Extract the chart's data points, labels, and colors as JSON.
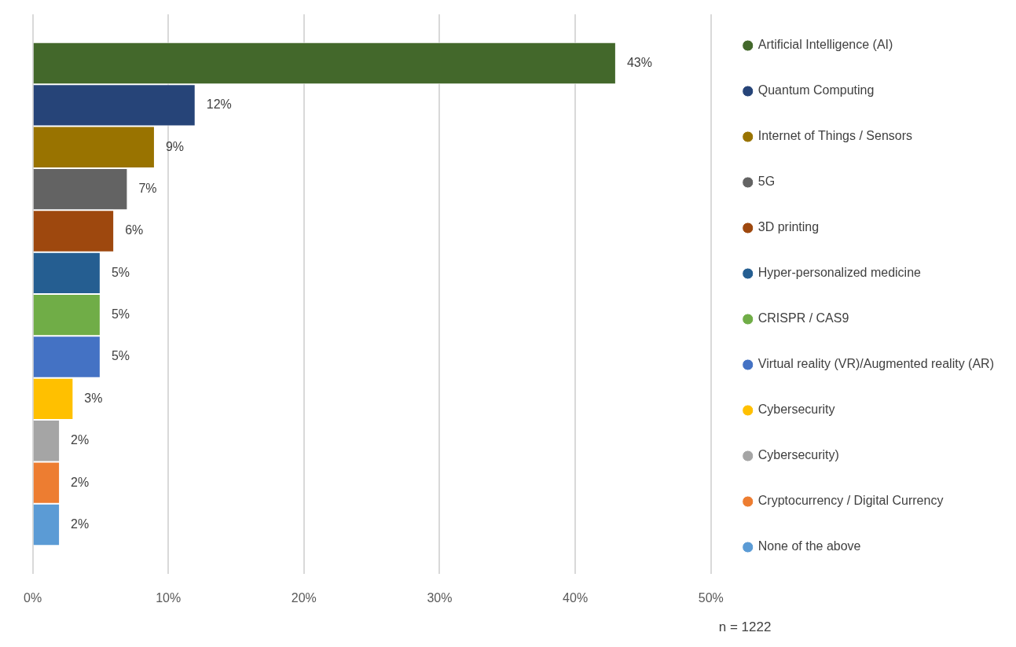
{
  "chart_data": {
    "type": "bar",
    "orientation": "horizontal",
    "categories": [
      null
    ],
    "series": [
      {
        "name": "Artificial Intelligence (AI)",
        "color": "#43682b",
        "values": [
          43
        ],
        "value_labels": [
          "43%"
        ]
      },
      {
        "name": "Quantum Computing",
        "color": "#264478",
        "values": [
          12
        ],
        "value_labels": [
          "12%"
        ]
      },
      {
        "name": "Internet of Things / Sensors",
        "color": "#997300",
        "values": [
          9
        ],
        "value_labels": [
          "9%"
        ]
      },
      {
        "name": "5G",
        "color": "#636363",
        "values": [
          7
        ],
        "value_labels": [
          "7%"
        ]
      },
      {
        "name": "3D printing",
        "color": "#9e480e",
        "values": [
          6
        ],
        "value_labels": [
          "6%"
        ]
      },
      {
        "name": "Hyper-personalized medicine",
        "color": "#255e91",
        "values": [
          5
        ],
        "value_labels": [
          "5%"
        ]
      },
      {
        "name": "CRISPR / CAS9",
        "color": "#70ad47",
        "values": [
          5
        ],
        "value_labels": [
          "5%"
        ]
      },
      {
        "name": "Virtual reality (VR)/Augmented reality (AR)",
        "color": "#4472c4",
        "values": [
          5
        ],
        "value_labels": [
          "5%"
        ]
      },
      {
        "name": "Cybersecurity",
        "color": "#ffc000",
        "values": [
          3
        ],
        "value_labels": [
          "3%"
        ]
      },
      {
        "name": "Cybersecurity)",
        "color": "#a5a5a5",
        "values": [
          2
        ],
        "value_labels": [
          "2%"
        ]
      },
      {
        "name": "Cryptocurrency / Digital Currency",
        "color": "#ed7d31",
        "values": [
          2
        ],
        "value_labels": [
          "2%"
        ]
      },
      {
        "name": "None of the above",
        "color": "#5b9bd5",
        "values": [
          2
        ],
        "value_labels": [
          "2%"
        ]
      }
    ],
    "xlim": [
      0,
      50
    ],
    "xticks": [
      {
        "value": 0,
        "label": "0%"
      },
      {
        "value": 10,
        "label": "10%"
      },
      {
        "value": 20,
        "label": "20%"
      },
      {
        "value": 30,
        "label": "30%"
      },
      {
        "value": 40,
        "label": "40%"
      },
      {
        "value": 50,
        "label": "50%"
      }
    ],
    "grid": "x",
    "legend": "right",
    "annotations": [
      "n = 1222"
    ]
  }
}
